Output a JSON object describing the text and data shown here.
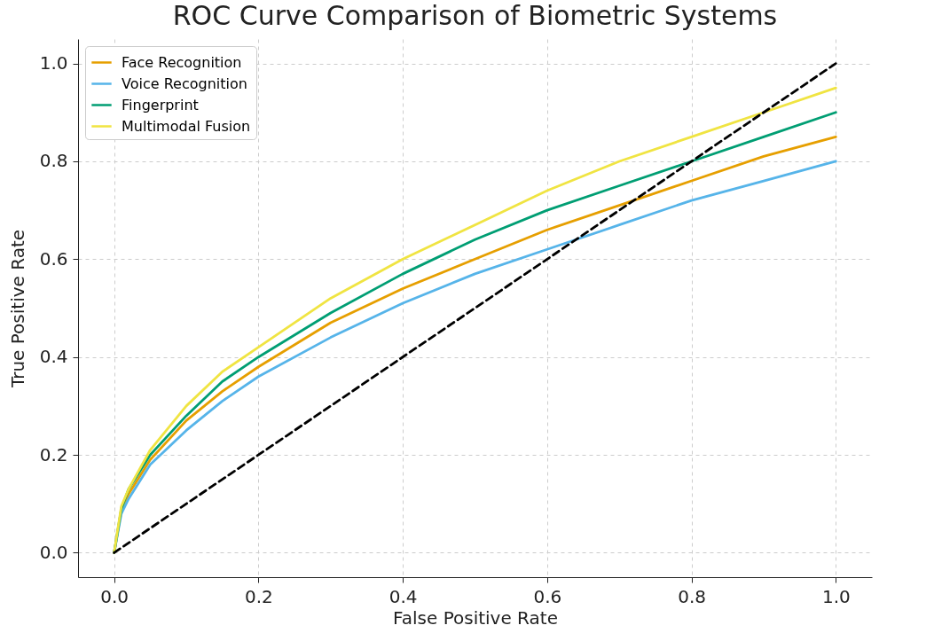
{
  "chart_data": {
    "type": "line",
    "title": "ROC Curve Comparison of Biometric Systems",
    "xlabel": "False Positive Rate",
    "ylabel": "True Positive Rate",
    "x": [
      0,
      0.01,
      0.02,
      0.05,
      0.1,
      0.15,
      0.2,
      0.3,
      0.4,
      0.5,
      0.6,
      0.7,
      0.8,
      0.9,
      1.0
    ],
    "series": [
      {
        "name": "Face Recognition",
        "color": "#e69f00",
        "values": [
          0,
          0.085,
          0.12,
          0.19,
          0.27,
          0.33,
          0.38,
          0.47,
          0.54,
          0.6,
          0.66,
          0.71,
          0.76,
          0.81,
          0.85
        ]
      },
      {
        "name": "Voice Recognition",
        "color": "#56b4e9",
        "values": [
          0,
          0.08,
          0.11,
          0.18,
          0.25,
          0.31,
          0.36,
          0.44,
          0.51,
          0.57,
          0.62,
          0.67,
          0.72,
          0.76,
          0.8
        ]
      },
      {
        "name": "Fingerprint",
        "color": "#009e73",
        "values": [
          0,
          0.09,
          0.13,
          0.2,
          0.28,
          0.35,
          0.4,
          0.49,
          0.57,
          0.64,
          0.7,
          0.75,
          0.8,
          0.85,
          0.9
        ]
      },
      {
        "name": "Multimodal Fusion",
        "color": "#f0e442",
        "values": [
          0,
          0.095,
          0.13,
          0.21,
          0.3,
          0.37,
          0.42,
          0.52,
          0.6,
          0.67,
          0.74,
          0.8,
          0.85,
          0.9,
          0.95
        ]
      },
      {
        "color": "#000000",
        "line_style": "dashed",
        "x": [
          0,
          1
        ],
        "values": [
          0,
          1
        ]
      }
    ],
    "xlim": [
      -0.05,
      1.05
    ],
    "ylim": [
      -0.05,
      1.05
    ],
    "xticks": [
      {
        "value": 0,
        "label": "0.0"
      },
      {
        "value": 0.2,
        "label": "0.2"
      },
      {
        "value": 0.4,
        "label": "0.4"
      },
      {
        "value": 0.6,
        "label": "0.6"
      },
      {
        "value": 0.8,
        "label": "0.8"
      },
      {
        "value": 1,
        "label": "1.0"
      }
    ],
    "yticks": [
      {
        "value": 0,
        "label": "0.0"
      },
      {
        "value": 0.2,
        "label": "0.2"
      },
      {
        "value": 0.4,
        "label": "0.4"
      },
      {
        "value": 0.6,
        "label": "0.6"
      },
      {
        "value": 0.8,
        "label": "0.8"
      },
      {
        "value": 1,
        "label": "1.0"
      }
    ],
    "grid": true,
    "legend": "top left",
    "line_style": "solid"
  }
}
